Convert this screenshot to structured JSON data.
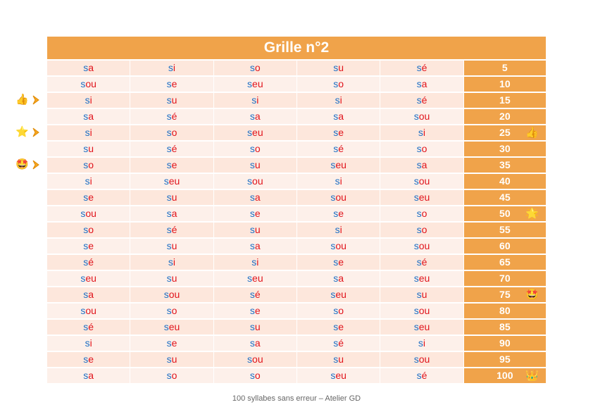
{
  "title": "Grille n°2",
  "footer": "100 syllabes sans erreur – Atelier GD",
  "colors": {
    "header_orange": "#f0a34a",
    "row_light": "#fdf0ea",
    "row_dark": "#fde7dc",
    "consonant_blue": "#1e6fc4",
    "vowel_red": "#e0141c"
  },
  "rows": [
    {
      "cells": [
        [
          "s",
          "a"
        ],
        [
          "s",
          "i"
        ],
        [
          "s",
          "o"
        ],
        [
          "s",
          "u"
        ],
        [
          "s",
          "é"
        ]
      ],
      "score": "5",
      "reward": ""
    },
    {
      "cells": [
        [
          "s",
          "ou"
        ],
        [
          "s",
          "e"
        ],
        [
          "s",
          "eu"
        ],
        [
          "s",
          "o"
        ],
        [
          "s",
          "a"
        ]
      ],
      "score": "10",
      "reward": ""
    },
    {
      "cells": [
        [
          "s",
          "i"
        ],
        [
          "s",
          "u"
        ],
        [
          "s",
          "i"
        ],
        [
          "s",
          "i"
        ],
        [
          "s",
          "é"
        ]
      ],
      "score": "15",
      "reward": ""
    },
    {
      "cells": [
        [
          "s",
          "a"
        ],
        [
          "s",
          "é"
        ],
        [
          "s",
          "a"
        ],
        [
          "s",
          "a"
        ],
        [
          "s",
          "ou"
        ]
      ],
      "score": "20",
      "reward": ""
    },
    {
      "cells": [
        [
          "s",
          "i"
        ],
        [
          "s",
          "o"
        ],
        [
          "s",
          "eu"
        ],
        [
          "s",
          "e"
        ],
        [
          "s",
          "i"
        ]
      ],
      "score": "25",
      "reward": "👍"
    },
    {
      "cells": [
        [
          "s",
          "u"
        ],
        [
          "s",
          "é"
        ],
        [
          "s",
          "o"
        ],
        [
          "s",
          "é"
        ],
        [
          "s",
          "o"
        ]
      ],
      "score": "30",
      "reward": ""
    },
    {
      "cells": [
        [
          "s",
          "o"
        ],
        [
          "s",
          "e"
        ],
        [
          "s",
          "u"
        ],
        [
          "s",
          "eu"
        ],
        [
          "s",
          "a"
        ]
      ],
      "score": "35",
      "reward": ""
    },
    {
      "cells": [
        [
          "s",
          "i"
        ],
        [
          "s",
          "eu"
        ],
        [
          "s",
          "ou"
        ],
        [
          "s",
          "i"
        ],
        [
          "s",
          "ou"
        ]
      ],
      "score": "40",
      "reward": ""
    },
    {
      "cells": [
        [
          "s",
          "e"
        ],
        [
          "s",
          "u"
        ],
        [
          "s",
          "a"
        ],
        [
          "s",
          "ou"
        ],
        [
          "s",
          "eu"
        ]
      ],
      "score": "45",
      "reward": ""
    },
    {
      "cells": [
        [
          "s",
          "ou"
        ],
        [
          "s",
          "a"
        ],
        [
          "s",
          "e"
        ],
        [
          "s",
          "e"
        ],
        [
          "s",
          "o"
        ]
      ],
      "score": "50",
      "reward": "🌟"
    },
    {
      "cells": [
        [
          "s",
          "o"
        ],
        [
          "s",
          "é"
        ],
        [
          "s",
          "u"
        ],
        [
          "s",
          "i"
        ],
        [
          "s",
          "o"
        ]
      ],
      "score": "55",
      "reward": ""
    },
    {
      "cells": [
        [
          "s",
          "e"
        ],
        [
          "s",
          "u"
        ],
        [
          "s",
          "a"
        ],
        [
          "s",
          "ou"
        ],
        [
          "s",
          "ou"
        ]
      ],
      "score": "60",
      "reward": ""
    },
    {
      "cells": [
        [
          "s",
          "é"
        ],
        [
          "s",
          "i"
        ],
        [
          "s",
          "i"
        ],
        [
          "s",
          "e"
        ],
        [
          "s",
          "é"
        ]
      ],
      "score": "65",
      "reward": ""
    },
    {
      "cells": [
        [
          "s",
          "eu"
        ],
        [
          "s",
          "u"
        ],
        [
          "s",
          "eu"
        ],
        [
          "s",
          "a"
        ],
        [
          "s",
          "eu"
        ]
      ],
      "score": "70",
      "reward": ""
    },
    {
      "cells": [
        [
          "s",
          "a"
        ],
        [
          "s",
          "ou"
        ],
        [
          "s",
          "é"
        ],
        [
          "s",
          "eu"
        ],
        [
          "s",
          "u"
        ]
      ],
      "score": "75",
      "reward": "🤩"
    },
    {
      "cells": [
        [
          "s",
          "ou"
        ],
        [
          "s",
          "o"
        ],
        [
          "s",
          "e"
        ],
        [
          "s",
          "o"
        ],
        [
          "s",
          "ou"
        ]
      ],
      "score": "80",
      "reward": ""
    },
    {
      "cells": [
        [
          "s",
          "é"
        ],
        [
          "s",
          "eu"
        ],
        [
          "s",
          "u"
        ],
        [
          "s",
          "e"
        ],
        [
          "s",
          "eu"
        ]
      ],
      "score": "85",
      "reward": ""
    },
    {
      "cells": [
        [
          "s",
          "i"
        ],
        [
          "s",
          "e"
        ],
        [
          "s",
          "a"
        ],
        [
          "s",
          "é"
        ],
        [
          "s",
          "i"
        ]
      ],
      "score": "90",
      "reward": ""
    },
    {
      "cells": [
        [
          "s",
          "e"
        ],
        [
          "s",
          "u"
        ],
        [
          "s",
          "ou"
        ],
        [
          "s",
          "u"
        ],
        [
          "s",
          "ou"
        ]
      ],
      "score": "95",
      "reward": ""
    },
    {
      "cells": [
        [
          "s",
          "a"
        ],
        [
          "s",
          "o"
        ],
        [
          "s",
          "o"
        ],
        [
          "s",
          "eu"
        ],
        [
          "s",
          "é"
        ]
      ],
      "score": "100",
      "reward": "👑"
    }
  ],
  "side_markers": [
    {
      "row": 2,
      "emoji": "👍",
      "icon": "thumbs-up-icon"
    },
    {
      "row": 4,
      "emoji": "⭐",
      "icon": "star-icon"
    },
    {
      "row": 6,
      "emoji": "🤩",
      "icon": "star-struck-icon"
    }
  ]
}
